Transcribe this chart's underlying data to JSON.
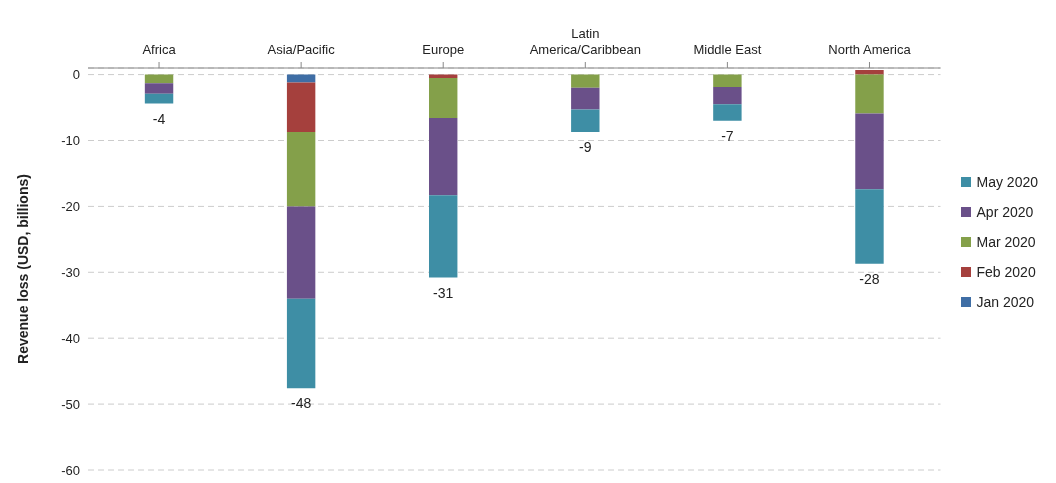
{
  "chart_data": {
    "type": "bar",
    "stacked": true,
    "ylabel": "Revenue loss (USD, billions)",
    "categories": [
      "Africa",
      "Asia/Pacific",
      "Europe",
      "Latin America/Caribbean",
      "Middle East",
      "North America"
    ],
    "series": [
      {
        "name": "Jan 2020",
        "color": "#3f6ea5",
        "values": [
          0,
          -1.2,
          0,
          0,
          0,
          0
        ]
      },
      {
        "name": "Feb 2020",
        "color": "#a5403d",
        "values": [
          0,
          -7.5,
          -0.5,
          0,
          0,
          0.7
        ]
      },
      {
        "name": "Mar 2020",
        "color": "#84a04a",
        "values": [
          -1.3,
          -11.3,
          -6.1,
          -2.0,
          -1.9,
          -5.9
        ]
      },
      {
        "name": "Apr 2020",
        "color": "#6a5089",
        "values": [
          -1.6,
          -14.0,
          -11.7,
          -3.3,
          -2.6,
          -11.5
        ]
      },
      {
        "name": "May 2020",
        "color": "#3e8ea5",
        "values": [
          -1.5,
          -13.6,
          -12.5,
          -3.4,
          -2.5,
          -11.3
        ]
      }
    ],
    "totals": [
      "-4",
      "-48",
      "-31",
      "-9",
      "-7",
      "-28"
    ],
    "ylim": [
      -60,
      1
    ],
    "yticks": [
      -60,
      -50,
      -40,
      -30,
      -20,
      -10,
      0
    ],
    "grid": "y",
    "legend": "right"
  }
}
